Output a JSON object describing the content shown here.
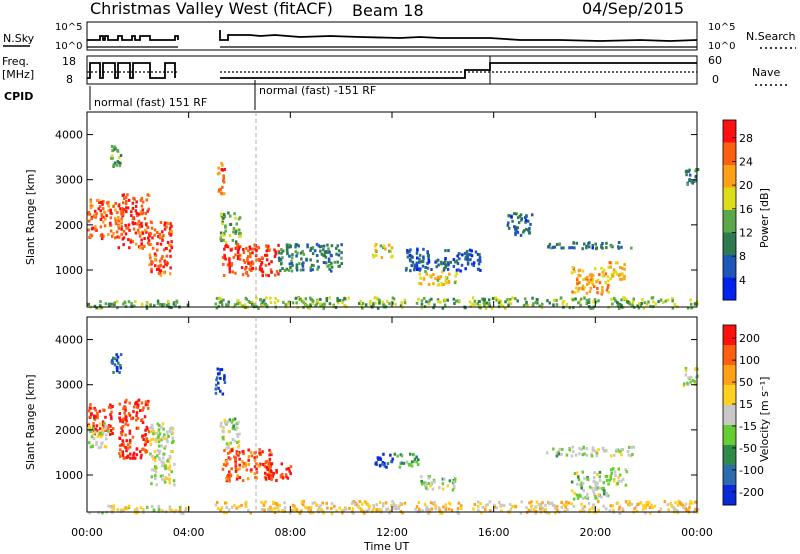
{
  "header": {
    "station": "Christmas Valley West (fitACF)",
    "beam": "Beam 18",
    "date": "04/Sep/2015"
  },
  "time_axis": {
    "label": "Time UT",
    "ticks": [
      "00:00",
      "04:00",
      "08:00",
      "12:00",
      "16:00",
      "20:00",
      "00:00"
    ],
    "range_hours": [
      0,
      24
    ]
  },
  "panels": {
    "nsky": {
      "label": "N.Sky",
      "left_ticks": [
        "10^5",
        "10^0"
      ],
      "right_label": "N.Search",
      "right_ticks": [
        "10^5",
        "10^0"
      ]
    },
    "freq": {
      "label_line1": "Freq.",
      "label_line2": "[MHz]",
      "left_ticks": [
        "18",
        "8"
      ],
      "right_label": "Nave",
      "right_ticks": [
        "60",
        "0"
      ]
    },
    "cpid": {
      "label": "CPID",
      "segments": [
        {
          "text": "normal (fast) 151 RF"
        },
        {
          "text": "normal (fast) -151 RF"
        }
      ]
    }
  },
  "chart_data": [
    {
      "type": "heatmap",
      "name": "power",
      "ylabel": "Slant Range [km]",
      "ylim": [
        180,
        4500
      ],
      "yticks": [
        "1000",
        "2000",
        "3000",
        "4000"
      ],
      "colorbar_label": "Power [dB]",
      "colorbar_ticks": [
        "4",
        "8",
        "12",
        "16",
        "20",
        "24",
        "28"
      ],
      "colors": [
        "#0022ee",
        "#1f56b8",
        "#2f7a4e",
        "#5aa84a",
        "#dcdc18",
        "#ffa015",
        "#ff6010",
        "#ff1010"
      ],
      "blobs": [
        {
          "t0": 0.0,
          "t1": 1.2,
          "r0": 1700,
          "r1": 2600,
          "level": 0.82
        },
        {
          "t0": 1.2,
          "t1": 2.4,
          "r0": 1500,
          "r1": 2700,
          "level": 0.88
        },
        {
          "t0": 2.4,
          "t1": 3.3,
          "r0": 900,
          "r1": 2100,
          "level": 0.85
        },
        {
          "t0": 0.9,
          "t1": 1.3,
          "r0": 3300,
          "r1": 3800,
          "level": 0.4
        },
        {
          "t0": 5.1,
          "t1": 5.4,
          "r0": 2700,
          "r1": 3400,
          "level": 0.8
        },
        {
          "t0": 5.2,
          "t1": 6.0,
          "r0": 1600,
          "r1": 2300,
          "level": 0.45
        },
        {
          "t0": 5.3,
          "t1": 7.5,
          "r0": 900,
          "r1": 1600,
          "level": 0.9
        },
        {
          "t0": 7.5,
          "t1": 10.0,
          "r0": 1000,
          "r1": 1600,
          "level": 0.3
        },
        {
          "t0": 11.2,
          "t1": 12.0,
          "r0": 1300,
          "r1": 1600,
          "level": 0.6
        },
        {
          "t0": 13.0,
          "t1": 14.5,
          "r0": 700,
          "r1": 1000,
          "level": 0.6
        },
        {
          "t0": 12.5,
          "t1": 15.5,
          "r0": 1000,
          "r1": 1500,
          "level": 0.2
        },
        {
          "t0": 16.5,
          "t1": 17.5,
          "r0": 1800,
          "r1": 2300,
          "level": 0.25
        },
        {
          "t0": 18.0,
          "t1": 21.5,
          "r0": 1500,
          "r1": 1650,
          "level": 0.25
        },
        {
          "t0": 19.0,
          "t1": 20.5,
          "r0": 500,
          "r1": 1100,
          "level": 0.7
        },
        {
          "t0": 20.5,
          "t1": 21.3,
          "r0": 800,
          "r1": 1200,
          "level": 0.65
        },
        {
          "t0": 23.5,
          "t1": 24.0,
          "r0": 2900,
          "r1": 3300,
          "level": 0.3
        },
        {
          "t0": 5.0,
          "t1": 24.0,
          "r0": 180,
          "r1": 420,
          "level": 0.45
        },
        {
          "t0": 0.0,
          "t1": 4.0,
          "r0": 180,
          "r1": 350,
          "level": 0.4
        }
      ]
    },
    {
      "type": "heatmap",
      "name": "velocity",
      "ylabel": "Slant Range [km]",
      "ylim": [
        180,
        4500
      ],
      "yticks": [
        "1000",
        "2000",
        "3000",
        "4000"
      ],
      "colorbar_label": "Velocity [m s⁻¹]",
      "colorbar_ticks": [
        "200",
        "100",
        "50",
        "15",
        "-15",
        "-50",
        "-100",
        "-200"
      ],
      "colors": [
        "#0a2ad8",
        "#2f6ab0",
        "#2f8a4a",
        "#66cc33",
        "#c8c8c8",
        "#ffd020",
        "#ffa015",
        "#ff6010",
        "#ff1010"
      ],
      "blobs": [
        {
          "t0": 0.0,
          "t1": 1.0,
          "r0": 1900,
          "r1": 2600,
          "level": 0.92
        },
        {
          "t0": 0.0,
          "t1": 0.8,
          "r0": 1600,
          "r1": 2200,
          "level": 0.5
        },
        {
          "t0": 1.2,
          "t1": 2.4,
          "r0": 1400,
          "r1": 2700,
          "level": 0.92
        },
        {
          "t0": 2.4,
          "t1": 3.4,
          "r0": 800,
          "r1": 2200,
          "level": 0.5
        },
        {
          "t0": 0.9,
          "t1": 1.3,
          "r0": 3300,
          "r1": 3700,
          "level": 0.1
        },
        {
          "t0": 5.0,
          "t1": 5.4,
          "r0": 2800,
          "r1": 3400,
          "level": 0.05
        },
        {
          "t0": 5.2,
          "t1": 6.0,
          "r0": 1600,
          "r1": 2300,
          "level": 0.45
        },
        {
          "t0": 5.3,
          "t1": 7.3,
          "r0": 900,
          "r1": 1600,
          "level": 0.85
        },
        {
          "t0": 7.0,
          "t1": 8.0,
          "r0": 900,
          "r1": 1300,
          "level": 0.95
        },
        {
          "t0": 11.3,
          "t1": 12.0,
          "r0": 1200,
          "r1": 1500,
          "level": 0.1
        },
        {
          "t0": 12.0,
          "t1": 13.0,
          "r0": 1200,
          "r1": 1500,
          "level": 0.35
        },
        {
          "t0": 13.0,
          "t1": 14.5,
          "r0": 700,
          "r1": 1000,
          "level": 0.45
        },
        {
          "t0": 18.0,
          "t1": 21.5,
          "r0": 1450,
          "r1": 1650,
          "level": 0.45
        },
        {
          "t0": 19.0,
          "t1": 20.5,
          "r0": 500,
          "r1": 1100,
          "level": 0.45
        },
        {
          "t0": 20.5,
          "t1": 21.2,
          "r0": 800,
          "r1": 1200,
          "level": 0.45
        },
        {
          "t0": 23.4,
          "t1": 24.0,
          "r0": 3000,
          "r1": 3400,
          "level": 0.45
        },
        {
          "t0": 5.0,
          "t1": 24.0,
          "r0": 180,
          "r1": 450,
          "level": 0.6
        },
        {
          "t0": 0.0,
          "t1": 4.0,
          "r0": 180,
          "r1": 350,
          "level": 0.55
        }
      ]
    }
  ]
}
